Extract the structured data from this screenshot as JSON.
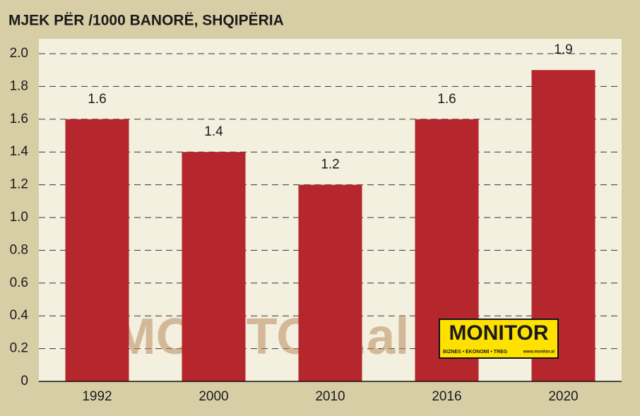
{
  "chart_data": {
    "type": "bar",
    "title": "MJEK PËR /1000 BANORË, SHQIPËRIA",
    "categories": [
      "1992",
      "2000",
      "2010",
      "2016",
      "2020"
    ],
    "values": [
      1.6,
      1.4,
      1.2,
      1.6,
      1.9
    ],
    "color": "#b5262d",
    "ylim": [
      0,
      2
    ],
    "yticks": [
      0,
      0.2,
      0.4,
      0.6,
      0.8,
      {
        "value": 1,
        "label": "1.0"
      },
      1.2,
      1.4,
      1.6,
      1.8,
      {
        "value": 2,
        "label": "2.0"
      }
    ],
    "grid": true,
    "watermark": "MONITOR.al",
    "logo": {
      "name": "MONITOR",
      "tagline": "BIZNES • EKONOMI • TREG",
      "url": "www.monitor.al"
    }
  }
}
